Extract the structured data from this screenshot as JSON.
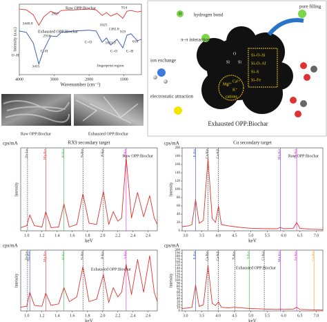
{
  "chart_data": [
    {
      "type": "line",
      "xlabel": "Wavenumber (cm⁻¹)",
      "ylabel": "Intensity (a.u.)",
      "xlim": [
        4000,
        500
      ],
      "ylim": [
        0,
        100
      ],
      "xticks": [
        4000,
        3000,
        2000,
        1000
      ],
      "x": [
        4000,
        3800,
        3600,
        3440,
        3300,
        3100,
        2927,
        2800,
        2400,
        2000,
        1800,
        1625,
        1500,
        1382,
        1200,
        1031,
        914,
        800,
        616,
        500
      ],
      "series": [
        {
          "name": "Raw OPP:Biochar",
          "color": "#e0322c",
          "values": [
            93,
            92,
            85,
            70,
            82,
            90,
            86,
            91,
            92,
            93,
            92,
            84,
            88,
            83,
            87,
            80,
            90,
            91,
            89,
            90
          ]
        },
        {
          "name": "Exhausted OPP:Biochar",
          "color": "#2e4fb8",
          "values": [
            62,
            60,
            45,
            15,
            35,
            55,
            54,
            60,
            62,
            63,
            62,
            46,
            52,
            42,
            50,
            38,
            56,
            58,
            48,
            50
          ]
        }
      ],
      "annotations": [
        "2927",
        "914",
        "3440.8",
        "1625",
        "1382.8",
        "2916",
        "1621.9",
        "919",
        "616",
        "3415",
        "O–H",
        "C–H",
        "C=O",
        "C–O",
        "C–H",
        "fingerprint region"
      ]
    },
    {
      "type": "line",
      "title": "RX9 secondary target",
      "xlabel": "keV",
      "ylabel": "Intensity",
      "unit": "cps/mA",
      "xlim": [
        0.92,
        2.72
      ],
      "ylim": [
        0,
        130
      ],
      "xticks": [
        {
          "value": 1,
          "label": "1.0"
        },
        1.2,
        1.4,
        1.6,
        1.8,
        {
          "value": 2,
          "label": "2.0"
        },
        2.2,
        2.4,
        2.6
      ],
      "x": [
        0.92,
        1.0,
        1.04,
        1.1,
        1.2,
        1.25,
        1.32,
        1.42,
        1.49,
        1.56,
        1.66,
        1.74,
        1.82,
        1.92,
        2.01,
        2.08,
        2.14,
        2.2,
        2.25,
        2.31,
        2.38,
        2.46,
        2.54,
        2.62,
        2.68,
        2.72
      ],
      "series": [
        {
          "name": "Raw OPP:Biochar",
          "color": "#e0322c",
          "values": [
            5,
            8,
            25,
            8,
            6,
            30,
            5,
            6,
            42,
            6,
            10,
            58,
            12,
            10,
            62,
            10,
            30,
            15,
            20,
            115,
            20,
            60,
            22,
            55,
            20,
            10
          ]
        }
      ],
      "markers": [
        {
          "x": 1.01,
          "label": "Zn-Lα",
          "color": "#333333"
        },
        {
          "x": 1.25,
          "label": "Mg-Kα",
          "color": "#e0322c"
        },
        {
          "x": 1.49,
          "label": "Al-Kα",
          "color": "#3cb043"
        },
        {
          "x": 1.74,
          "label": "Si-Kα",
          "color": "#333333"
        },
        {
          "x": 2.01,
          "label": "P-Kα",
          "color": "#333333"
        },
        {
          "x": 2.31,
          "label": "S-Kα",
          "color": "#d020d0"
        }
      ]
    },
    {
      "type": "line",
      "title": "Cu secondary target",
      "xlabel": "keV",
      "ylabel": "Intensity",
      "unit": "cps/mA",
      "xlim": [
        2.9,
        7.2
      ],
      "ylim": [
        0,
        200
      ],
      "yticks": [
        0,
        20,
        40,
        60,
        80,
        100,
        120,
        140,
        160,
        180,
        200
      ],
      "xticks": [
        {
          "value": 3,
          "label": "3.0"
        },
        3.5,
        {
          "value": 4,
          "label": "4.0"
        },
        4.5,
        {
          "value": 5,
          "label": "5.0"
        },
        5.5,
        {
          "value": 6,
          "label": "6.0"
        },
        6.5,
        {
          "value": 7,
          "label": "7.0"
        }
      ],
      "x": [
        2.9,
        3.1,
        3.2,
        3.31,
        3.42,
        3.55,
        3.69,
        3.82,
        3.92,
        4.01,
        4.1,
        4.3,
        4.5,
        4.7,
        5.0,
        5.5,
        5.8,
        5.9,
        6.0,
        6.3,
        6.4,
        6.5,
        6.8,
        7.2
      ],
      "series": [
        {
          "name": "Raw OPP:Biochar",
          "color": "#e0322c",
          "values": [
            10,
            12,
            15,
            75,
            18,
            25,
            175,
            30,
            20,
            60,
            15,
            12,
            10,
            8,
            6,
            5,
            5,
            8,
            5,
            6,
            20,
            6,
            4,
            3
          ]
        }
      ],
      "markers": [
        {
          "x": 3.31,
          "label": "K-Kα",
          "color": "#2e4fb8"
        },
        {
          "x": 3.69,
          "label": "Ca-Kα",
          "color": "#333333"
        },
        {
          "x": 4.01,
          "label": "Ca-Kβ",
          "color": "#333333"
        },
        {
          "x": 5.9,
          "label": "Mn-Kα",
          "color": "#8a2be2"
        },
        {
          "x": 6.4,
          "label": "Fe-Kα",
          "color": "#d020d0"
        }
      ]
    },
    {
      "type": "line",
      "xlabel": "keV",
      "ylabel": "Intensity",
      "unit": "cps/mA",
      "xlim": [
        0.92,
        2.72
      ],
      "ylim": [
        0,
        130
      ],
      "xticks": [
        {
          "value": 1,
          "label": "1.0"
        },
        1.2,
        1.4,
        1.6,
        1.8,
        {
          "value": 2,
          "label": "2.0"
        },
        2.2,
        2.4,
        2.6
      ],
      "x": [
        0.92,
        1.0,
        1.04,
        1.1,
        1.2,
        1.25,
        1.32,
        1.42,
        1.49,
        1.56,
        1.66,
        1.74,
        1.82,
        1.92,
        2.01,
        2.08,
        2.14,
        2.2,
        2.25,
        2.31,
        2.38,
        2.46,
        2.54,
        2.62,
        2.68,
        2.72
      ],
      "series": [
        {
          "name": "Exhausted OPP:Biochar",
          "color": "#e0322c",
          "values": [
            8,
            10,
            40,
            12,
            10,
            38,
            12,
            15,
            50,
            20,
            30,
            95,
            20,
            25,
            78,
            18,
            50,
            30,
            40,
            100,
            35,
            110,
            40,
            118,
            40,
            20
          ]
        }
      ],
      "markers": [
        {
          "x": 1.01,
          "label": "Zn-Lα",
          "color": "#333333"
        },
        {
          "x": 1.04,
          "label": "Na-Kα",
          "color": "#2e4fb8"
        },
        {
          "x": 1.25,
          "label": "Mg-Kα",
          "color": "#e0322c"
        },
        {
          "x": 1.49,
          "label": "Al-Kα",
          "color": "#3cb043"
        },
        {
          "x": 1.74,
          "label": "Si-Kα",
          "color": "#333333"
        },
        {
          "x": 2.01,
          "label": "P-Kα",
          "color": "#333333"
        },
        {
          "x": 2.31,
          "label": "S-Kα",
          "color": "#d020d0"
        }
      ]
    },
    {
      "type": "line",
      "xlabel": "keV",
      "ylabel": "Intensity",
      "unit": "cps/mA",
      "xlim": [
        2.9,
        7.2
      ],
      "ylim": [
        0,
        200
      ],
      "yticks": [
        0,
        10,
        20,
        30,
        40,
        50,
        60,
        70,
        80,
        90,
        100,
        110,
        120,
        130,
        140,
        150,
        160,
        170,
        180,
        190,
        200
      ],
      "xticks": [
        {
          "value": 3,
          "label": "3.0"
        },
        3.5,
        {
          "value": 4,
          "label": "4.0"
        },
        4.5,
        {
          "value": 5,
          "label": "5.0"
        },
        5.5,
        {
          "value": 6,
          "label": "6.0"
        },
        6.5,
        {
          "value": 7,
          "label": "7.0"
        }
      ],
      "x": [
        2.9,
        3.1,
        3.2,
        3.31,
        3.42,
        3.55,
        3.69,
        3.82,
        3.92,
        4.01,
        4.1,
        4.3,
        4.5,
        4.7,
        5.0,
        5.5,
        5.8,
        5.9,
        6.0,
        6.3,
        6.4,
        6.5,
        6.8,
        7.2
      ],
      "series": [
        {
          "name": "Exhausted OPP:Biochar",
          "color": "#e0322c",
          "values": [
            8,
            10,
            12,
            85,
            15,
            20,
            150,
            25,
            18,
            30,
            12,
            10,
            12,
            10,
            8,
            6,
            5,
            6,
            5,
            6,
            12,
            5,
            4,
            3
          ]
        }
      ],
      "markers": [
        {
          "x": 3.31,
          "label": "K-Kα",
          "color": "#2e4fb8"
        },
        {
          "x": 3.69,
          "label": "Ca-Kα",
          "color": "#333333"
        },
        {
          "x": 4.01,
          "label": "Ca-Kβ",
          "color": "#333333"
        },
        {
          "x": 4.51,
          "label": "Ti-Kα",
          "color": "#333333"
        },
        {
          "x": 4.95,
          "label": "V-Kα",
          "color": "#3cb043"
        },
        {
          "x": 5.41,
          "label": "Cr-Kα",
          "color": "#333333"
        },
        {
          "x": 5.9,
          "label": "Mn-Kα",
          "color": "#8a2be2"
        },
        {
          "x": 6.4,
          "label": "Fe-Kα",
          "color": "#d020d0"
        },
        {
          "x": 6.93,
          "label": "Co-Kα",
          "color": "#f0a020"
        }
      ]
    }
  ],
  "figure": {
    "sem_captions": [
      "Raw OPP:Biochar",
      "Exhausted OPP:Biochar"
    ],
    "schematic": {
      "title": "Exhausted OPP:Biochar",
      "labels": [
        "hydrogen bond",
        "pore filling",
        "π–π interaction",
        "ion exchange",
        "electrostatic attraction",
        "Si–O–Si",
        "Si–O–Al",
        "Si–S",
        "Si–Fe",
        "Si",
        "Si",
        "O",
        "Mg²⁺",
        "Ca²⁺",
        "K⁺",
        "cations",
        "H"
      ]
    }
  }
}
